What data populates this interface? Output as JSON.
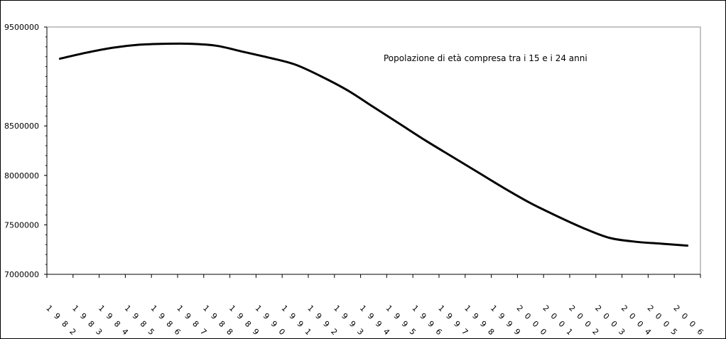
{
  "chart_data": {
    "type": "line",
    "annotation": "Popolazione  di età compresa tra i 15 e i 24 anni",
    "title": "",
    "xlabel": "",
    "ylabel": "",
    "ylim": [
      7000000,
      9500000
    ],
    "y_ticks": [
      7000000,
      7500000,
      8000000,
      8500000,
      9500000
    ],
    "y_tick_labels": [
      "7000000",
      "7500000",
      "8000000",
      "8500000",
      "9500000"
    ],
    "grid": false,
    "legend": "none",
    "line_color": "#000000",
    "x": [
      "1982",
      "1983",
      "1984",
      "1985",
      "1986",
      "1987",
      "1988",
      "1989",
      "1990",
      "1991",
      "1992",
      "1993",
      "1994",
      "1995",
      "1996",
      "1997",
      "1998",
      "1999",
      "2000",
      "2001",
      "2002",
      "2003",
      "2004",
      "2005",
      "2006"
    ],
    "x_tick_labels": [
      [
        "1",
        "9",
        "8",
        "2"
      ],
      [
        "1",
        "9",
        "8",
        "3"
      ],
      [
        "1",
        "9",
        "8",
        "4"
      ],
      [
        "1",
        "9",
        "8",
        "5"
      ],
      [
        "1",
        "9",
        "8",
        "6"
      ],
      [
        "1",
        "9",
        "8",
        "7"
      ],
      [
        "1",
        "9",
        "8",
        "8"
      ],
      [
        "1",
        "9",
        "8",
        "9"
      ],
      [
        "1",
        "9",
        "9",
        "0"
      ],
      [
        "1",
        "9",
        "9",
        "1"
      ],
      [
        "1",
        "9",
        "9",
        "2"
      ],
      [
        "1",
        "9",
        "9",
        "3"
      ],
      [
        "1",
        "9",
        "9",
        "4"
      ],
      [
        "1",
        "9",
        "9",
        "5"
      ],
      [
        "1",
        "9",
        "9",
        "6"
      ],
      [
        "1",
        "9",
        "9",
        "7"
      ],
      [
        "1",
        "9",
        "9",
        "8"
      ],
      [
        "1",
        "9",
        "9",
        "9"
      ],
      [
        "2",
        "0",
        "0",
        "0"
      ],
      [
        "2",
        "0",
        "0",
        "1"
      ],
      [
        "2",
        "0",
        "0",
        "2"
      ],
      [
        "2",
        "0",
        "0",
        "3"
      ],
      [
        "2",
        "0",
        "0",
        "4"
      ],
      [
        "2",
        "0",
        "0",
        "5"
      ],
      [
        "2",
        "0",
        "0",
        "6"
      ]
    ],
    "series": [
      {
        "values": [
          9180000,
          9240000,
          9290000,
          9320000,
          9330000,
          9330000,
          9310000,
          9250000,
          9190000,
          9120000,
          9000000,
          8860000,
          8690000,
          8520000,
          8350000,
          8190000,
          8030000,
          7870000,
          7720000,
          7590000,
          7470000,
          7370000,
          7330000,
          7310000,
          7290000
        ]
      }
    ]
  }
}
